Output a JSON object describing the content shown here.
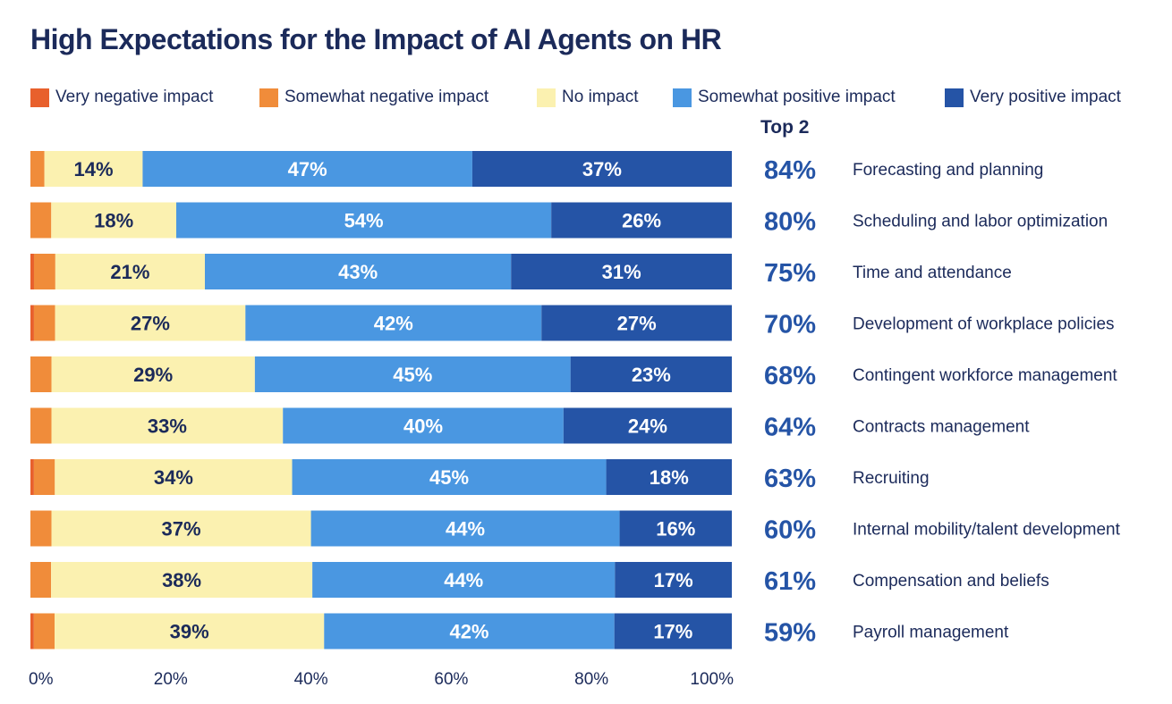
{
  "chart_data": {
    "type": "bar",
    "orientation": "horizontal",
    "stacked": true,
    "title": "High Expectations for the Impact of AI Agents on HR",
    "categories": [
      "Forecasting and planning",
      "Scheduling and labor optimization",
      "Time and attendance",
      "Development of workplace policies",
      "Contingent workforce management",
      "Contracts management",
      "Recruiting",
      "Internal mobility/talent development",
      "Compensation and beliefs",
      "Payroll management"
    ],
    "series": [
      {
        "name": "Very negative impact",
        "color": "#e8602c",
        "values": [
          0,
          0,
          0.5,
          0.5,
          0,
          0,
          0.5,
          0,
          0,
          0.5
        ]
      },
      {
        "name": "Somewhat negative impact",
        "color": "#f08c3a",
        "values": [
          2,
          3,
          3,
          3,
          3,
          3,
          3,
          3,
          3,
          3
        ]
      },
      {
        "name": "No impact",
        "color": "#fbf1b0",
        "values": [
          14,
          18,
          21,
          27,
          29,
          33,
          34,
          37,
          38,
          39
        ]
      },
      {
        "name": "Somewhat positive impact",
        "color": "#4a97e1",
        "values": [
          47,
          54,
          43,
          42,
          45,
          40,
          45,
          44,
          44,
          42
        ]
      },
      {
        "name": "Very positive impact",
        "color": "#2554a6",
        "values": [
          37,
          26,
          31,
          27,
          23,
          24,
          18,
          16,
          17,
          17
        ]
      }
    ],
    "labels": {
      "No impact": [
        "14%",
        "18%",
        "21%",
        "27%",
        "29%",
        "33%",
        "34%",
        "37%",
        "38%",
        "39%"
      ],
      "Somewhat positive impact": [
        "47%",
        "54%",
        "43%",
        "42%",
        "45%",
        "40%",
        "45%",
        "44%",
        "44%",
        "42%"
      ],
      "Very positive impact": [
        "37%",
        "26%",
        "31%",
        "27%",
        "23%",
        "24%",
        "18%",
        "16%",
        "17%",
        "17%"
      ]
    },
    "top2": {
      "header": "Top 2",
      "values": [
        "84%",
        "80%",
        "75%",
        "70%",
        "68%",
        "64%",
        "63%",
        "60%",
        "61%",
        "59%"
      ]
    },
    "xlim": [
      0,
      100
    ],
    "x_ticks": [
      "0%",
      "20%",
      "40%",
      "60%",
      "80%",
      "100%"
    ],
    "grid": false,
    "legend_position": "top"
  },
  "colors": {
    "text": "#1b2a5a",
    "top2_value": "#2554a6",
    "label_on_light": "#1b2a5a",
    "label_on_dark": "#ffffff"
  }
}
